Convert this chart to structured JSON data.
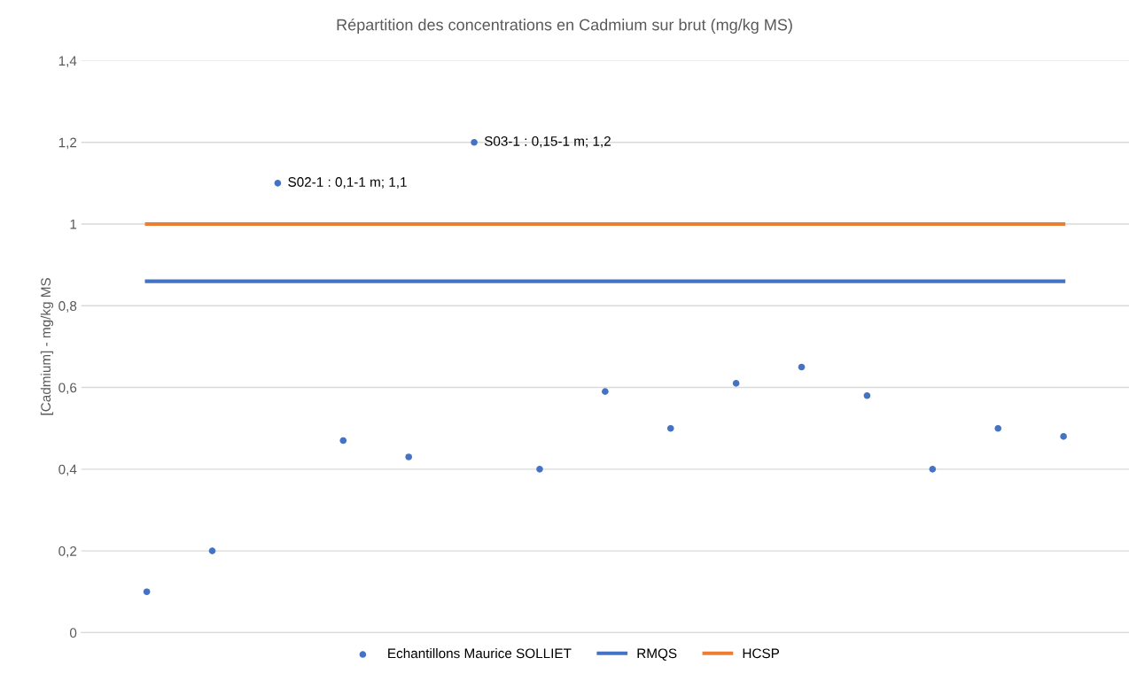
{
  "chart_data": {
    "type": "scatter",
    "title": "Répartition des concentrations en Cadmium sur brut (mg/kg MS)",
    "ylabel": "[Cadmium] - mg/kg MS",
    "categories": [
      null,
      null,
      null,
      null,
      null,
      null,
      null,
      null,
      null,
      null,
      null,
      null,
      null,
      null,
      null
    ],
    "series": [
      {
        "name": "Echantillons Maurice SOLLIET",
        "color": "#4472c4",
        "marker": "circle",
        "values": [
          0.1,
          0.2,
          1.1,
          0.47,
          0.43,
          1.2,
          0.4,
          0.59,
          0.5,
          0.61,
          0.65,
          0.58,
          0.4,
          0.5,
          0.48
        ],
        "value_labels": [
          null,
          null,
          "S02-1 : 0,1-1 m; 1,1",
          null,
          null,
          "S03-1 : 0,15-1 m; 1,2",
          null,
          null,
          null,
          null,
          null,
          null,
          null,
          null,
          null
        ]
      },
      {
        "name": "RMQS",
        "type": "line",
        "color": "#4472c4",
        "values": [
          0.86,
          0.86,
          0.86,
          0.86,
          0.86,
          0.86,
          0.86,
          0.86,
          0.86,
          0.86,
          0.86,
          0.86,
          0.86,
          0.86,
          0.86
        ]
      },
      {
        "name": "HCSP",
        "type": "line",
        "color": "#ed7d31",
        "values": [
          1,
          1,
          1,
          1,
          1,
          1,
          1,
          1,
          1,
          1,
          1,
          1,
          1,
          1,
          1
        ]
      }
    ],
    "ylim": [
      0,
      1.4
    ],
    "yticks": [
      {
        "value": 0,
        "label": "0"
      },
      {
        "value": 0.2,
        "label": "0,2"
      },
      {
        "value": 0.4,
        "label": "0,4"
      },
      {
        "value": 0.6,
        "label": "0,6"
      },
      {
        "value": 0.8,
        "label": "0,8"
      },
      {
        "value": 1,
        "label": "1"
      },
      {
        "value": 1.2,
        "label": "1,2"
      },
      {
        "value": 1.4,
        "label": "1,4"
      }
    ],
    "grid": "y",
    "legend": "bottom"
  }
}
